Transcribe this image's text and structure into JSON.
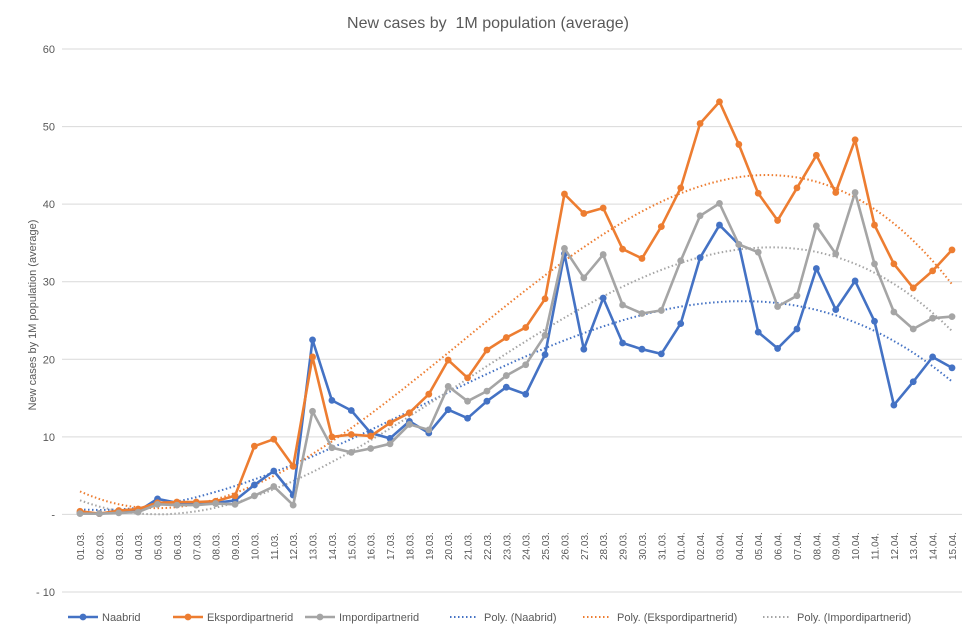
{
  "chart_data": {
    "type": "line",
    "title": "New cases by  1M population (average)",
    "xlabel": "",
    "ylabel": "New cases by 1M population (average)",
    "ylim": [
      -10,
      60
    ],
    "yticks": [
      {
        "value": 60,
        "label": "60"
      },
      {
        "value": 50,
        "label": "50"
      },
      {
        "value": 40,
        "label": "40"
      },
      {
        "value": 30,
        "label": "30"
      },
      {
        "value": 20,
        "label": "20"
      },
      {
        "value": 10,
        "label": "10"
      },
      {
        "value": 0,
        "label": "-"
      },
      {
        "value": -10,
        "label": "- 10"
      }
    ],
    "grid": true,
    "legend_position": "bottom",
    "categories": [
      "01.03.",
      "02.03.",
      "03.03.",
      "04.03.",
      "05.03.",
      "06.03.",
      "07.03.",
      "08.03.",
      "09.03.",
      "10.03.",
      "11.03.",
      "12.03.",
      "13.03.",
      "14.03.",
      "15.03.",
      "16.03.",
      "17.03.",
      "18.03.",
      "19.03.",
      "20.03.",
      "21.03.",
      "22.03.",
      "23.03.",
      "24.03.",
      "25.03.",
      "26.03.",
      "27.03.",
      "28.03.",
      "29.03.",
      "30.03.",
      "31.03.",
      "01.04.",
      "02.04.",
      "03.04.",
      "04.04.",
      "05.04.",
      "06.04.",
      "07.04.",
      "08.04.",
      "09.04.",
      "10.04.",
      "11.04.",
      "12.04.",
      "13.04.",
      "14.04.",
      "15.04."
    ],
    "series": [
      {
        "name": "Naabrid",
        "color": "#4472C4",
        "values": [
          0.2,
          0.1,
          0.3,
          0.4,
          2.0,
          1.5,
          1.5,
          1.5,
          1.8,
          3.8,
          5.6,
          2.5,
          22.5,
          14.7,
          13.4,
          10.5,
          9.8,
          12.0,
          10.5,
          13.5,
          12.4,
          14.6,
          16.4,
          15.5,
          20.6,
          33.6,
          21.3,
          27.9,
          22.1,
          21.3,
          20.7,
          24.6,
          33.1,
          37.3,
          34.8,
          23.5,
          21.4,
          23.9,
          31.7,
          26.4,
          30.1,
          24.9,
          14.1,
          17.1,
          20.3,
          18.9
        ]
      },
      {
        "name": "Ekspordipartnerid",
        "color": "#ED7D31",
        "values": [
          0.4,
          0.1,
          0.5,
          0.7,
          1.5,
          1.6,
          1.6,
          1.7,
          2.4,
          8.8,
          9.7,
          6.2,
          20.3,
          10.0,
          10.3,
          10.1,
          11.8,
          13.1,
          15.5,
          19.9,
          17.6,
          21.2,
          22.8,
          24.1,
          27.8,
          41.3,
          38.8,
          39.5,
          34.2,
          33.0,
          37.1,
          42.1,
          50.4,
          53.2,
          47.7,
          41.4,
          37.9,
          42.1,
          46.3,
          41.5,
          48.3,
          37.3,
          32.3,
          29.2,
          31.4,
          34.1
        ]
      },
      {
        "name": "Impordipartnerid",
        "color": "#A5A5A5",
        "values": [
          0.1,
          0.1,
          0.2,
          0.3,
          1.3,
          1.2,
          1.2,
          1.4,
          1.3,
          2.4,
          3.6,
          1.2,
          13.3,
          8.6,
          8.0,
          8.5,
          9.1,
          11.6,
          10.9,
          16.5,
          14.6,
          15.9,
          17.9,
          19.3,
          23.1,
          34.3,
          30.5,
          33.5,
          27.0,
          25.9,
          26.3,
          32.7,
          38.5,
          40.1,
          34.8,
          33.8,
          26.8,
          28.2,
          37.2,
          33.6,
          41.5,
          32.3,
          26.1,
          23.9,
          25.3,
          25.5
        ]
      }
    ],
    "trendlines": [
      {
        "name": "Poly. (Naabrid)",
        "of": 0,
        "order": 3,
        "color": "#4472C4"
      },
      {
        "name": "Poly. (Ekspordipartnerid)",
        "of": 1,
        "order": 3,
        "color": "#ED7D31"
      },
      {
        "name": "Poly. (Impordipartnerid)",
        "of": 2,
        "order": 3,
        "color": "#A5A5A5"
      }
    ]
  }
}
